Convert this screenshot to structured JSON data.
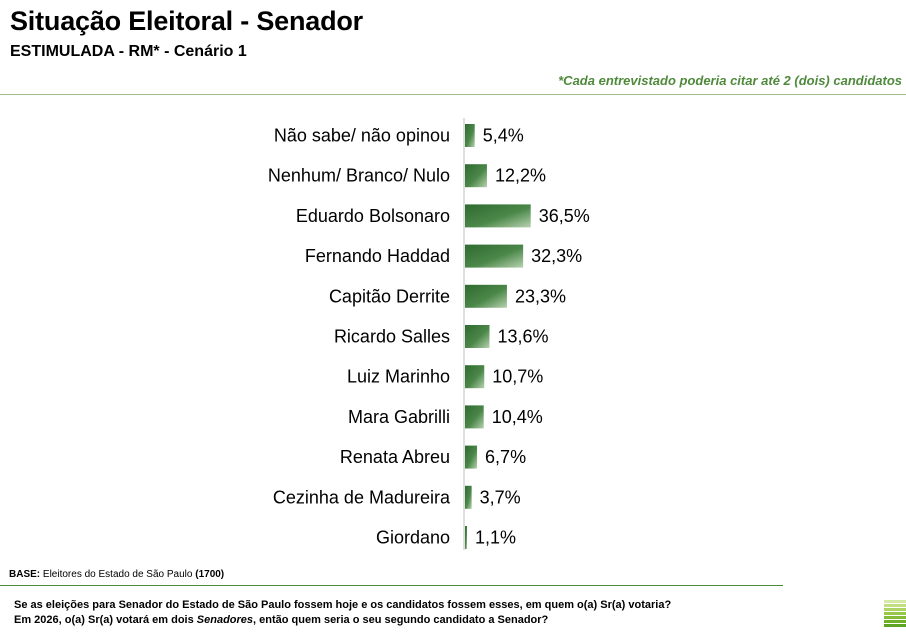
{
  "header": {
    "title": "Situação Eleitoral - Senador",
    "subtitle": "ESTIMULADA - RM* - Cenário 1",
    "note": "*Cada entrevistado poderia citar até 2 (dois) candidatos"
  },
  "chart_data": {
    "type": "bar",
    "orientation": "horizontal",
    "categories": [
      "Não sabe/ não opinou",
      "Nenhum/ Branco/ Nulo",
      "Eduardo Bolsonaro",
      "Fernando Haddad",
      "Capitão Derrite",
      "Ricardo Salles",
      "Luiz Marinho",
      "Mara Gabrilli",
      "Renata Abreu",
      "Cezinha de Madureira",
      "Giordano"
    ],
    "values": [
      5.4,
      12.2,
      36.5,
      32.3,
      23.3,
      13.6,
      10.7,
      10.4,
      6.7,
      3.7,
      1.1
    ],
    "value_labels": [
      "5,4%",
      "12,2%",
      "36,5%",
      "32,3%",
      "23,3%",
      "13,6%",
      "10,7%",
      "10,4%",
      "6,7%",
      "3,7%",
      "1,1%"
    ],
    "xlim": [
      0,
      100
    ],
    "grid": false,
    "bar_color": "#3f7a3c"
  },
  "footer": {
    "base_label": "BASE:",
    "base_text": "Eleitores do Estado de São Paulo",
    "base_count": "(1700)",
    "question_line1": "Se as eleições para Senador do Estado de São Paulo fossem hoje e os candidatos fossem esses, em quem o(a) Sr(a) votaria?",
    "question_line2_pre": "Em 2026, o(a) Sr(a) votará em dois ",
    "question_line2_em": "Senadores",
    "question_line2_post": ", então quem seria o seu segundo candidato a Senador?"
  },
  "logo": {
    "icon": "green-stripes-logo",
    "colors": [
      "#d6e9a6",
      "#c3df83",
      "#aed464",
      "#98c84a",
      "#84bc38",
      "#70b02b",
      "#5ea423"
    ]
  }
}
